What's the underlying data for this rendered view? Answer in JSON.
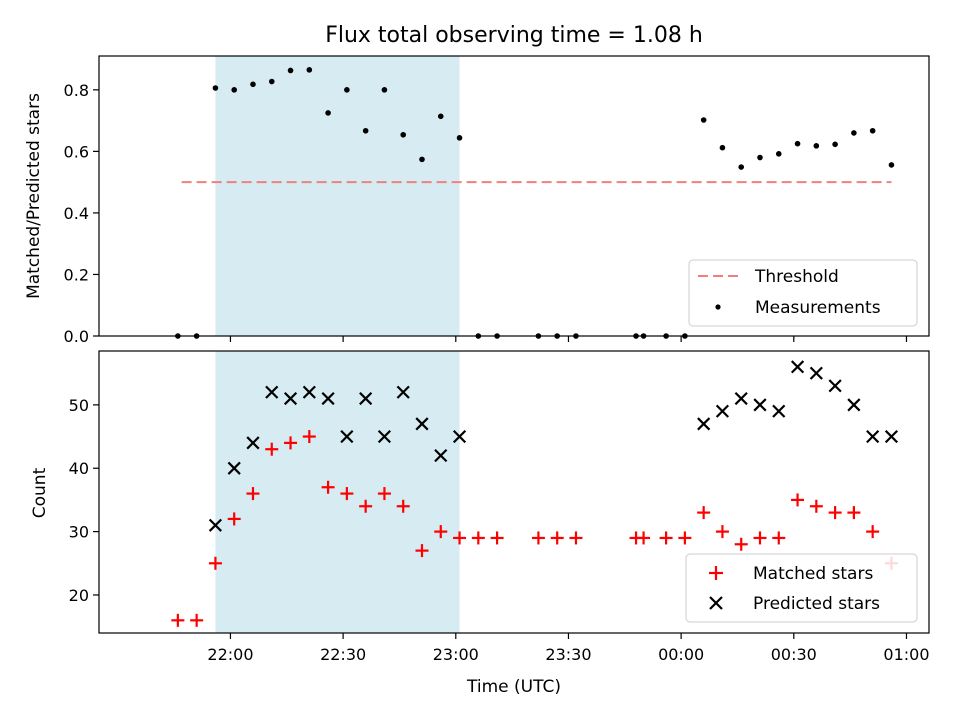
{
  "chart_data": [
    {
      "type": "scatter",
      "title": "Flux total observing time = 1.08 h",
      "xlabel": "",
      "ylabel": "Matched/Predicted stars",
      "ylim": [
        0,
        0.91
      ],
      "yticks": [
        0.0,
        0.2,
        0.4,
        0.6,
        0.8
      ],
      "shaded_region": {
        "from": "21:56",
        "to": "23:01",
        "color": "#add8e6"
      },
      "threshold": {
        "name": "Threshold",
        "value": 0.5,
        "from": "21:47",
        "to": "00:56",
        "color": "#f08080",
        "style": "dashed"
      },
      "legend": {
        "position": "bottom-right",
        "entries": [
          "Threshold",
          "Measurements"
        ]
      },
      "series": [
        {
          "name": "Measurements",
          "marker": "dot",
          "color": "#000000",
          "x": [
            "21:46",
            "21:51",
            "21:56",
            "22:01",
            "22:06",
            "22:11",
            "22:16",
            "22:21",
            "22:26",
            "22:31",
            "22:36",
            "22:41",
            "22:46",
            "22:51",
            "22:56",
            "23:01",
            "23:06",
            "23:11",
            "23:22",
            "23:27",
            "23:32",
            "23:48",
            "23:50",
            "23:56",
            "00:01",
            "00:06",
            "00:11",
            "00:16",
            "00:21",
            "00:26",
            "00:31",
            "00:36",
            "00:41",
            "00:46",
            "00:51",
            "00:56"
          ],
          "y": [
            0.0,
            0.0,
            0.806,
            0.8,
            0.818,
            0.827,
            0.863,
            0.865,
            0.725,
            0.8,
            0.667,
            0.8,
            0.654,
            0.574,
            0.714,
            0.644,
            0.0,
            0.0,
            0.0,
            0.0,
            0.0,
            0.0,
            0.0,
            0.0,
            0.0,
            0.702,
            0.612,
            0.549,
            0.58,
            0.592,
            0.625,
            0.618,
            0.623,
            0.66,
            0.667,
            0.556
          ]
        }
      ]
    },
    {
      "type": "scatter",
      "title": "",
      "xlabel": "Time (UTC)",
      "ylabel": "Count",
      "ylim": [
        14,
        58.5
      ],
      "yticks": [
        20,
        30,
        40,
        50
      ],
      "xlim": [
        "21:25",
        "01:06"
      ],
      "xticks": [
        "22:00",
        "22:30",
        "23:00",
        "23:30",
        "00:00",
        "00:30",
        "01:00"
      ],
      "shaded_region": {
        "from": "21:56",
        "to": "23:01",
        "color": "#add8e6"
      },
      "legend": {
        "position": "bottom-right",
        "entries": [
          "Matched stars",
          "Predicted stars"
        ]
      },
      "series": [
        {
          "name": "Matched stars",
          "marker": "plus",
          "color": "#ff0000",
          "x": [
            "21:46",
            "21:51",
            "21:56",
            "22:01",
            "22:06",
            "22:11",
            "22:16",
            "22:21",
            "22:26",
            "22:31",
            "22:36",
            "22:41",
            "22:46",
            "22:51",
            "22:56",
            "23:01",
            "23:06",
            "23:11",
            "23:22",
            "23:27",
            "23:32",
            "23:48",
            "23:50",
            "23:56",
            "00:01",
            "00:06",
            "00:11",
            "00:16",
            "00:21",
            "00:26",
            "00:31",
            "00:36",
            "00:41",
            "00:46",
            "00:51",
            "00:56"
          ],
          "y": [
            16,
            16,
            25,
            32,
            36,
            43,
            44,
            45,
            37,
            36,
            34,
            36,
            34,
            27,
            30,
            29,
            29,
            29,
            29,
            29,
            29,
            29,
            29,
            29,
            29,
            33,
            30,
            28,
            29,
            29,
            35,
            34,
            33,
            33,
            30,
            25
          ]
        },
        {
          "name": "Predicted stars",
          "marker": "x",
          "color": "#000000",
          "x": [
            "21:56",
            "22:01",
            "22:06",
            "22:11",
            "22:16",
            "22:21",
            "22:26",
            "22:31",
            "22:36",
            "22:41",
            "22:46",
            "22:51",
            "22:56",
            "23:01",
            "00:06",
            "00:11",
            "00:16",
            "00:21",
            "00:26",
            "00:31",
            "00:36",
            "00:41",
            "00:46",
            "00:51",
            "00:56"
          ],
          "y": [
            31,
            40,
            44,
            52,
            51,
            52,
            51,
            45,
            51,
            45,
            52,
            47,
            42,
            45,
            47,
            49,
            51,
            50,
            49,
            56,
            55,
            53,
            50,
            45,
            45
          ]
        }
      ]
    }
  ]
}
